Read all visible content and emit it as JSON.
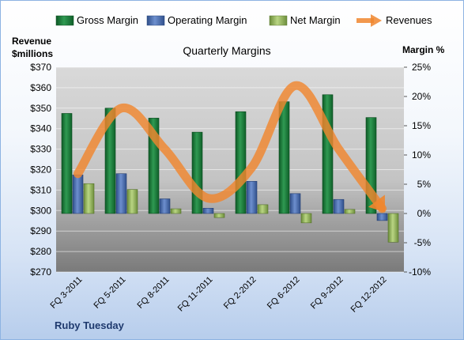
{
  "chart_data": {
    "type": "bar",
    "title": "Quarterly Margins",
    "y_left_label_line1": "Revenue",
    "y_left_label_line2": "$millions",
    "y_right_label": "Margin %",
    "footer": "Ruby Tuesday",
    "categories": [
      "FQ 3-2011",
      "FQ 5-2011",
      "FQ 8-2011",
      "FQ 11-2011",
      "FQ 2-2012",
      "FQ 6-2012",
      "FQ 9-2012",
      "FQ 12-2012"
    ],
    "left_axis": {
      "min": 270,
      "max": 370,
      "step": 10,
      "ticks": [
        "$270",
        "$280",
        "$290",
        "$300",
        "$310",
        "$320",
        "$330",
        "$340",
        "$350",
        "$360",
        "$370"
      ]
    },
    "right_axis": {
      "min": -10,
      "max": 25,
      "step": 5,
      "ticks": [
        "-10%",
        "-5%",
        "0%",
        "5%",
        "10%",
        "15%",
        "20%",
        "25%"
      ]
    },
    "series": [
      {
        "name": "Gross Margin",
        "axis": "right",
        "color": "#1e7a3a",
        "values": [
          17.1,
          18.0,
          16.3,
          13.9,
          17.4,
          19.1,
          20.3,
          16.4
        ]
      },
      {
        "name": "Operating Margin",
        "axis": "right",
        "color": "#4a6fb0",
        "values": [
          6.6,
          6.8,
          2.5,
          0.9,
          5.5,
          3.4,
          2.4,
          -1.2
        ]
      },
      {
        "name": "Net Margin",
        "axis": "right",
        "color": "#8fb25a",
        "values": [
          5.1,
          4.1,
          0.8,
          -0.7,
          1.5,
          -1.6,
          0.7,
          -4.9
        ]
      },
      {
        "name": "Revenues",
        "axis": "left",
        "color": "#f0862e",
        "values": [
          318,
          350,
          330,
          306,
          321,
          361,
          330,
          301
        ]
      }
    ],
    "legend_position": "top",
    "grid": true
  }
}
